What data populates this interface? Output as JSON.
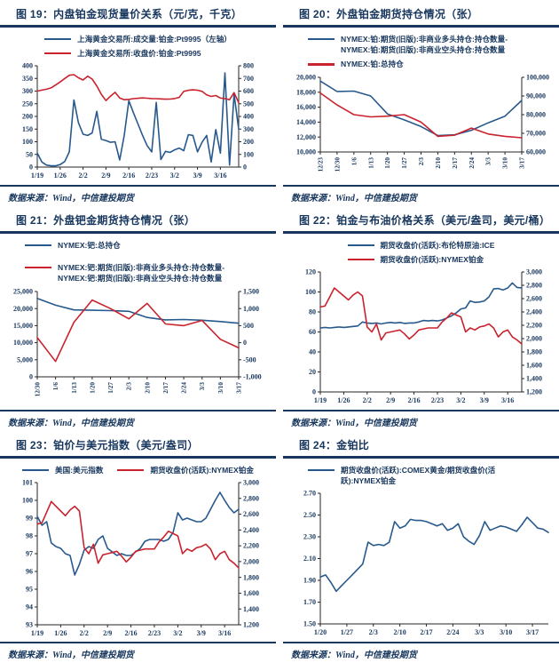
{
  "page": {
    "background": "#ffffff"
  },
  "colors": {
    "blue_line": "#27598D",
    "red_line": "#C9232E",
    "rule": "#17375E",
    "text": "#17365D",
    "axis": "#262626"
  },
  "chart_data": [
    {
      "id": "fig19",
      "type": "line",
      "title": "图 19：内盘铂金现货量价关系（元/克，千克）",
      "source": "数据来源：Wind，中信建投期货",
      "legend_inline": false,
      "legend_gap": false,
      "x_rotated": false,
      "x_tick_interval": 5,
      "x_labels": [
        "1/19",
        "1/26",
        "2/2",
        "2/9",
        "2/16",
        "2/23",
        "3/2",
        "3/9",
        "3/16"
      ],
      "left_axis": {
        "min": 0,
        "max": 400,
        "ticks": [
          "400",
          "350",
          "300",
          "250",
          "200",
          "150",
          "100",
          "50",
          "0"
        ]
      },
      "right_axis": {
        "min": 0,
        "max": 800,
        "ticks": [
          "800",
          "700",
          "600",
          "500",
          "400",
          "300",
          "200",
          "100",
          "0"
        ]
      },
      "series": [
        {
          "name": "上海黄金交易所:成交量:铂金:Pt9995（左轴）",
          "color": "#27598D",
          "axis": "left",
          "values": [
            55,
            20,
            8,
            5,
            5,
            10,
            22,
            60,
            265,
            175,
            130,
            125,
            135,
            220,
            110,
            105,
            98,
            100,
            28,
            125,
            262,
            215,
            170,
            125,
            85,
            60,
            255,
            30,
            62,
            58,
            68,
            75,
            65,
            128,
            125,
            60,
            98,
            125,
            20,
            148,
            55,
            372,
            8,
            288,
            150
          ]
        },
        {
          "name": "上海黄金交易所:收盘价:铂金:Pt9995",
          "color": "#C9232E",
          "axis": "right",
          "values": [
            600,
            608,
            615,
            625,
            648,
            672,
            700,
            725,
            730,
            705,
            688,
            718,
            695,
            640,
            575,
            525,
            560,
            590,
            545,
            532,
            535,
            540,
            543,
            546,
            544,
            541,
            540,
            538,
            536,
            537,
            541,
            550,
            598,
            606,
            610,
            607,
            598,
            570,
            558,
            565,
            545,
            540,
            532,
            588,
            508
          ]
        }
      ]
    },
    {
      "id": "fig20",
      "type": "line",
      "title": "图 20：外盘铂金期货持仓情况（张）",
      "source": "数据来源：Wind，中信建投期货",
      "legend_inline": false,
      "legend_gap": false,
      "x_rotated": true,
      "x_tick_interval": 1,
      "x_labels": [
        "12/23",
        "12/30",
        "1/6",
        "1/13",
        "1/20",
        "1/27",
        "2/3",
        "2/10",
        "2/17",
        "2/24",
        "3/3",
        "3/10",
        "3/17"
      ],
      "left_axis": {
        "min": 10000,
        "max": 20000,
        "ticks": [
          "20,000",
          "18,000",
          "16,000",
          "14,000",
          "12,000",
          "10,000"
        ]
      },
      "right_axis": {
        "min": 60000,
        "max": 100000,
        "ticks": [
          "100,000",
          "90,000",
          "80,000",
          "70,000",
          "60,000"
        ]
      },
      "series": [
        {
          "name": "NYMEX:铂:期货(旧版):非商业多头持仓:持仓数量-NYMEX:铂:期货(旧版):非商业空头持仓:持仓数量",
          "color": "#27598D",
          "axis": "left",
          "values": [
            19500,
            18100,
            18150,
            17500,
            15100,
            14300,
            13400,
            12200,
            12300,
            12900,
            13900,
            14800,
            16900
          ]
        },
        {
          "name": "NYMEX:铂:总持仓",
          "color": "#C9232E",
          "axis": "right",
          "values": [
            91600,
            85200,
            80000,
            78800,
            79200,
            80000,
            76000,
            68400,
            69000,
            72800,
            69600,
            68400,
            67600
          ]
        }
      ]
    },
    {
      "id": "fig21",
      "type": "line",
      "title": "图 21：外盘钯金期货持仓情况（张）",
      "source": "数据来源：Wind，中信建投期货",
      "legend_inline": false,
      "legend_gap": true,
      "x_rotated": true,
      "x_tick_interval": 1,
      "x_labels": [
        "12/30",
        "1/6",
        "1/13",
        "1/20",
        "1/27",
        "2/3",
        "2/10",
        "2/17",
        "2/24",
        "3/3",
        "3/10",
        "3/17"
      ],
      "left_axis": {
        "min": 0,
        "max": 25000,
        "ticks": [
          "25,000",
          "20,000",
          "15,000",
          "10,000",
          "5,000",
          "0"
        ]
      },
      "right_axis": {
        "min": -1000,
        "max": 1500,
        "ticks": [
          "1,500",
          "1,000",
          "500",
          "0",
          "-500",
          "-1,000"
        ]
      },
      "series": [
        {
          "name": "NYMEX:钯:总持仓",
          "color": "#27598D",
          "axis": "left",
          "values": [
            23000,
            21000,
            19600,
            19500,
            19400,
            19200,
            17400,
            16700,
            16800,
            16600,
            16200,
            15700
          ]
        },
        {
          "name": "NYMEX:钯:期货(旧版):非商业多头持仓:持仓数量-NYMEX:钯:期货(旧版):非商业空头持仓:持仓数量",
          "color": "#C9232E",
          "axis": "right",
          "values": [
            150,
            -550,
            600,
            1250,
            1000,
            700,
            1150,
            550,
            500,
            650,
            100,
            -150
          ]
        }
      ]
    },
    {
      "id": "fig22",
      "type": "line",
      "title": "图 22：铂金与布油价格关系（美元/盎司，美元/桶）",
      "source": "数据来源：Wind，中信建投期货",
      "legend_inline": false,
      "legend_gap": false,
      "x_rotated": false,
      "x_tick_interval": 5,
      "x_labels": [
        "1/19",
        "1/26",
        "2/2",
        "2/9",
        "2/16",
        "2/23",
        "3/2",
        "3/9",
        "3/16"
      ],
      "left_axis": {
        "min": 0,
        "max": 120,
        "ticks": [
          "120",
          "100",
          "80",
          "60",
          "40",
          "20",
          "0"
        ]
      },
      "right_axis": {
        "min": 1200,
        "max": 3000,
        "ticks": [
          "3,000",
          "2,800",
          "2,600",
          "2,400",
          "2,200",
          "2,000",
          "1,800",
          "1,600",
          "1,400",
          "1,200"
        ]
      },
      "series": [
        {
          "name": "期货收盘价(活跃):布伦特原油:ICE",
          "color": "#27598D",
          "axis": "left",
          "values": [
            64,
            64.5,
            64,
            64.5,
            65,
            64.5,
            65,
            65.5,
            66,
            70,
            69,
            68.5,
            69,
            68,
            69,
            69.5,
            69,
            69.5,
            68.5,
            69,
            69,
            70,
            71.5,
            71,
            71.5,
            71,
            72,
            74,
            76,
            79,
            83,
            84,
            91,
            89.5,
            90,
            91,
            95,
            103,
            103.5,
            102,
            104,
            109,
            104.5,
            104
          ]
        },
        {
          "name": "期货收盘价(活跃):NYMEX铂金",
          "color": "#C9232E",
          "axis": "right",
          "values": [
            2475,
            2490,
            2625,
            2760,
            2700,
            2640,
            2580,
            2655,
            2700,
            2640,
            2175,
            2100,
            2220,
            1980,
            2085,
            2100,
            2115,
            2130,
            2070,
            1995,
            2055,
            2130,
            2145,
            2160,
            2160,
            2160,
            2250,
            2310,
            2385,
            2355,
            2325,
            2100,
            2160,
            2130,
            2175,
            2190,
            2220,
            2160,
            2025,
            2100,
            2130,
            2025,
            1980,
            1920
          ]
        }
      ]
    },
    {
      "id": "fig23",
      "type": "line",
      "title": "图 23：铂价与美元指数（美元/盎司）",
      "source": "数据来源：Wind，中信建投期货",
      "legend_inline": true,
      "legend_gap": false,
      "x_rotated": false,
      "x_tick_interval": 5,
      "x_labels": [
        "1/19",
        "1/26",
        "2/2",
        "2/9",
        "2/16",
        "2/23",
        "3/2",
        "3/9",
        "3/16"
      ],
      "left_axis": {
        "min": 93,
        "max": 101,
        "ticks": [
          "101",
          "100",
          "99",
          "98",
          "97",
          "96",
          "95",
          "94",
          "93"
        ]
      },
      "right_axis": {
        "min": 1200,
        "max": 3000,
        "ticks": [
          "3,000",
          "2,800",
          "2,600",
          "2,400",
          "2,200",
          "2,000",
          "1,800",
          "1,600",
          "1,400",
          "1,200"
        ]
      },
      "series": [
        {
          "name": "美国:美元指数",
          "color": "#27598D",
          "axis": "left",
          "values": [
            99.1,
            98.6,
            98.8,
            97.6,
            97.4,
            97.3,
            97.0,
            96.9,
            95.8,
            96.4,
            97.2,
            97.4,
            97.3,
            97.8,
            98.0,
            97.3,
            97.1,
            96.9,
            97.0,
            96.9,
            96.9,
            97.1,
            97.3,
            97.7,
            97.8,
            97.8,
            97.8,
            97.7,
            97.8,
            98.2,
            99.3,
            98.9,
            99.0,
            98.9,
            98.8,
            98.8,
            99.0,
            99.5,
            100.0,
            100.45,
            100.0,
            99.6,
            99.3,
            99.5
          ]
        },
        {
          "name": "期货收盘价(活跃):NYMEX铂金",
          "color": "#C9232E",
          "axis": "right",
          "values": [
            2475,
            2490,
            2625,
            2760,
            2700,
            2640,
            2580,
            2655,
            2700,
            2640,
            2175,
            2100,
            2220,
            1980,
            2085,
            2100,
            2115,
            2130,
            2070,
            1995,
            2055,
            2130,
            2145,
            2160,
            2160,
            2160,
            2250,
            2310,
            2385,
            2355,
            2325,
            2100,
            2160,
            2130,
            2175,
            2190,
            2220,
            2160,
            2025,
            2100,
            2130,
            2025,
            1980,
            1920
          ]
        }
      ]
    },
    {
      "id": "fig24",
      "type": "line",
      "title": "图 24：金铂比",
      "source": "数据来源：Wind，中信建投期货",
      "legend_inline": false,
      "legend_gap": false,
      "x_rotated": false,
      "x_tick_interval": 5,
      "x_labels": [
        "1/20",
        "1/27",
        "2/3",
        "2/10",
        "2/17",
        "2/24",
        "3/3",
        "3/10",
        "3/17"
      ],
      "left_axis": {
        "min": 1.5,
        "max": 2.7,
        "ticks": [
          "2.70",
          "2.50",
          "2.30",
          "2.10",
          "1.90",
          "1.70",
          "1.50"
        ]
      },
      "right_axis": null,
      "series": [
        {
          "name": "期货收盘价(活跃):COMEX黄金/期货收盘价(活跃):NYMEX铂金",
          "color": "#27598D",
          "axis": "left",
          "values": [
            1.93,
            1.95,
            1.88,
            1.8,
            1.85,
            1.9,
            1.95,
            2.0,
            2.05,
            2.25,
            2.22,
            2.23,
            2.22,
            2.25,
            2.44,
            2.38,
            2.4,
            2.46,
            2.45,
            2.45,
            2.44,
            2.42,
            2.4,
            2.42,
            2.36,
            2.38,
            2.42,
            2.3,
            2.26,
            2.23,
            2.31,
            2.44,
            2.36,
            2.38,
            2.4,
            2.39,
            2.37,
            2.35,
            2.41,
            2.48,
            2.43,
            2.38,
            2.37,
            2.34
          ]
        }
      ]
    }
  ]
}
